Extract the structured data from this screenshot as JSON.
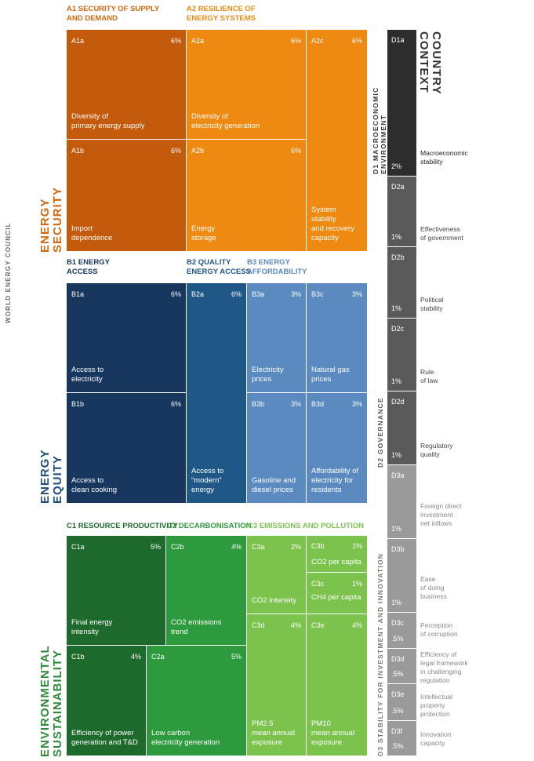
{
  "brand": "WORLD ENERGY COUNCIL",
  "colors": {
    "security_dark": "#c45a0c",
    "security_light": "#ee8a12",
    "equity_dark": "#17375e",
    "equity_mid": "#1f5886",
    "equity_light": "#5a8ac0",
    "env_dark": "#1d6a2c",
    "env_mid": "#2e9a3e",
    "env_light": "#7cc34e"
  },
  "sections": {
    "security": {
      "title": "ENERGY\nSECURITY"
    },
    "equity": {
      "title": "ENERGY\nEQUITY"
    },
    "environment": {
      "title": "ENVIRONMENTAL\nSUSTAINABILITY"
    },
    "context": {
      "title": "COUNTRY\nCONTEXT"
    }
  },
  "headers": {
    "a1": "A1 SECURITY OF SUPPLY\nAND DEMAND",
    "a2": "A2 RESILIENCE OF\nENERGY SYSTEMS",
    "b1": "B1 ENERGY\nACCESS",
    "b2": "B2 QUALITY\nENERGY ACCESS",
    "b3": "B3 ENERGY\nAFFORDABILITY",
    "c1": "C1 RESOURCE PRODUCTIVITY",
    "c2": "C2 DECARBONISATION",
    "c3": "C3 EMISSIONS AND POLLUTION",
    "d1": "D1 MACROECONOMIC\nENVIRONMENT",
    "d2": "D2 GOVERNANCE",
    "d3": "D3 STABILITY FOR INVESTMENT AND INNOVATION"
  },
  "cells": {
    "A1a": {
      "code": "A1a",
      "pct": "6%",
      "label": "Diversity of\nprimary energy supply"
    },
    "A1b": {
      "code": "A1b",
      "pct": "6%",
      "label": "Import\ndependence"
    },
    "A2a": {
      "code": "A2a",
      "pct": "6%",
      "label": "Diversity of\nelectricity generation"
    },
    "A2b": {
      "code": "A2b",
      "pct": "6%",
      "label": "Energy\nstorage"
    },
    "A2c": {
      "code": "A2c",
      "pct": "6%",
      "label": "System stability\nand recovery\ncapacity"
    },
    "B1a": {
      "code": "B1a",
      "pct": "6%",
      "label": "Access to\nelectricity"
    },
    "B1b": {
      "code": "B1b",
      "pct": "6%",
      "label": "Access to\nclean cooking"
    },
    "B2a": {
      "code": "B2a",
      "pct": "6%",
      "label": "Access to\n“modern”\nenergy"
    },
    "B3a": {
      "code": "B3a",
      "pct": "3%",
      "label": "Electricity\nprices"
    },
    "B3b": {
      "code": "B3b",
      "pct": "3%",
      "label": "Gasoline and\ndiesel prices"
    },
    "B3c": {
      "code": "B3c",
      "pct": "3%",
      "label": "Natural gas\nprices"
    },
    "B3d": {
      "code": "B3d",
      "pct": "3%",
      "label": "Affordability of\nelectricity for\nresidents"
    },
    "C1a": {
      "code": "C1a",
      "pct": "5%",
      "label": "Final energy\nintensity"
    },
    "C1b": {
      "code": "C1b",
      "pct": "4%",
      "label": "Efficiency of power\ngeneration and T&D"
    },
    "C2a": {
      "code": "C2a",
      "pct": "5%",
      "label": "Low carbon\nelectricity generation"
    },
    "C2b": {
      "code": "C2b",
      "pct": "4%",
      "label": "CO2 emissions\ntrend"
    },
    "C3a": {
      "code": "C3a",
      "pct": "2%",
      "label": "CO2 intensity"
    },
    "C3b": {
      "code": "C3b",
      "pct": "1%",
      "label": "CO2 per capita"
    },
    "C3c": {
      "code": "C3c",
      "pct": "1%",
      "label": "CH4 per capita"
    },
    "C3d": {
      "code": "C3d",
      "pct": "4%",
      "label": "PM2.5\nmean annual\nexposure"
    },
    "C3e": {
      "code": "C3e",
      "pct": "4%",
      "label": "PM10\nmean annual\nexposure"
    }
  },
  "context_cells": {
    "D1a": {
      "code": "D1a",
      "pct": "2%",
      "label": "Macroeconomic\nstability"
    },
    "D2a": {
      "code": "D2a",
      "pct": "1%",
      "label": "Effectiveness\nof government"
    },
    "D2b": {
      "code": "D2b",
      "pct": "1%",
      "label": "Political\nstability"
    },
    "D2c": {
      "code": "D2c",
      "pct": "1%",
      "label": "Rule\nof law"
    },
    "D2d": {
      "code": "D2d",
      "pct": "1%",
      "label": "Regulatory\nquality"
    },
    "D3a": {
      "code": "D3a",
      "pct": "1%",
      "label": "Foreign direct\ninvestment\nnet inflows"
    },
    "D3b": {
      "code": "D3b",
      "pct": "1%",
      "label": "Ease\nof doing\nbusiness"
    },
    "D3c": {
      "code": "D3c",
      "pct": ".5%",
      "label": "Perception\nof corruption"
    },
    "D3d": {
      "code": "D3d",
      "pct": ".5%",
      "label": "Efficiency of\nlegal framework\nin challenging\nregulation"
    },
    "D3e": {
      "code": "D3e",
      "pct": ".5%",
      "label": "Intellectual\nproperty\nprotection"
    },
    "D3f": {
      "code": "D3f",
      "pct": ".5%",
      "label": "Innovation\ncapacity"
    }
  }
}
